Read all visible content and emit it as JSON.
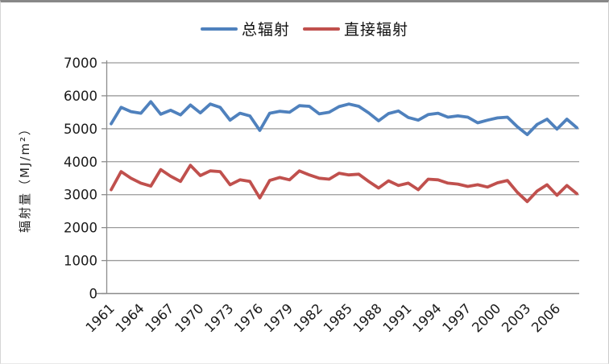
{
  "chart_data": {
    "type": "line",
    "title": "",
    "xlabel": "",
    "ylabel": "辐射量（MJ/m²）",
    "ylim": [
      0,
      7000
    ],
    "yticks": [
      0,
      1000,
      2000,
      3000,
      4000,
      5000,
      6000,
      7000
    ],
    "x_start": 1961,
    "x_end": 2008,
    "xtick_labels": [
      "1961",
      "1964",
      "1967",
      "1970",
      "1973",
      "1976",
      "1979",
      "1982",
      "1985",
      "1988",
      "1991",
      "1994",
      "1997",
      "2000",
      "2003",
      "2006"
    ],
    "grid": "horizontal-only",
    "legend_position": "top-center",
    "axis_color": "#8c8c8c",
    "gridline_color": "#9a9a9a",
    "tick_label_color": "#1a1a1a",
    "series": [
      {
        "name": "总辐射",
        "color": "#4F81BD",
        "values": [
          5150,
          5650,
          5520,
          5470,
          5820,
          5440,
          5560,
          5420,
          5720,
          5480,
          5750,
          5650,
          5260,
          5470,
          5390,
          4950,
          5470,
          5530,
          5500,
          5700,
          5680,
          5450,
          5500,
          5670,
          5750,
          5680,
          5480,
          5240,
          5460,
          5540,
          5340,
          5260,
          5430,
          5470,
          5350,
          5390,
          5350,
          5180,
          5260,
          5330,
          5350,
          5060,
          4820,
          5130,
          5290,
          4990,
          5290,
          5030
        ]
      },
      {
        "name": "直接辐射",
        "color": "#C0504D",
        "values": [
          3150,
          3700,
          3500,
          3350,
          3260,
          3760,
          3560,
          3400,
          3890,
          3580,
          3720,
          3700,
          3300,
          3450,
          3400,
          2900,
          3430,
          3520,
          3450,
          3720,
          3600,
          3500,
          3470,
          3650,
          3600,
          3620,
          3400,
          3200,
          3420,
          3280,
          3350,
          3150,
          3470,
          3450,
          3350,
          3320,
          3250,
          3300,
          3230,
          3360,
          3430,
          3070,
          2790,
          3110,
          3300,
          2980,
          3280,
          3030
        ]
      }
    ]
  }
}
